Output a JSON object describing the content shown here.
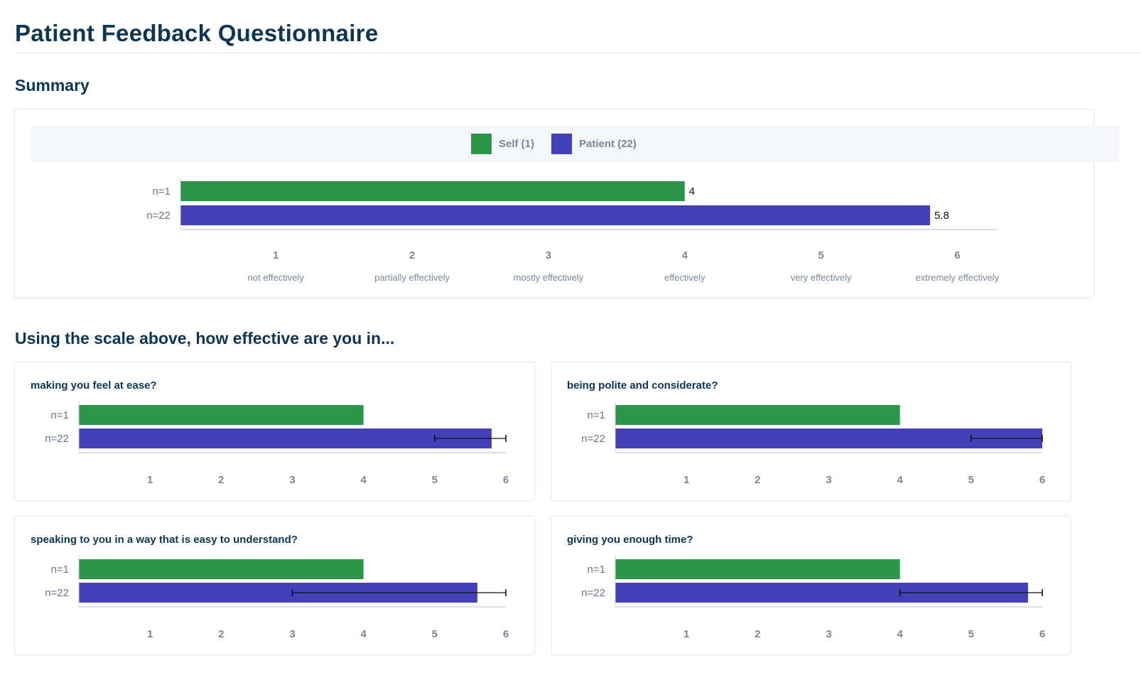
{
  "page": {
    "title": "Patient Feedback Questionnaire"
  },
  "summary": {
    "heading": "Summary",
    "legend": [
      {
        "label": "Self (1)",
        "color": "#2a9748"
      },
      {
        "label": "Patient (22)",
        "color": "#4340b8"
      }
    ]
  },
  "questions_heading": "Using the scale above, how effective are you in...",
  "colors": {
    "self": "#2a9748",
    "patient": "#4340b8",
    "axis": "#cfd4dc",
    "tick_text": "#7b8699",
    "row_label": "#6b7689"
  },
  "chart_data": [
    {
      "type": "bar",
      "id": "summary",
      "title": "",
      "orientation": "horizontal",
      "categories": [
        "n=1",
        "n=22"
      ],
      "series": [
        {
          "name": "Self (1)",
          "value": 4
        },
        {
          "name": "Patient (22)",
          "value": 5.8
        }
      ],
      "data_labels": [
        "4",
        "5.8"
      ],
      "xlim": [
        0.3,
        6.3
      ],
      "ticks": [
        1,
        2,
        3,
        4,
        5,
        6
      ],
      "tick_labels": [
        "1",
        "2",
        "3",
        "4",
        "5",
        "6"
      ],
      "tick_sublabels": [
        "not effectively",
        "partially effectively",
        "mostly effectively",
        "effectively",
        "very effectively",
        "extremely effectively"
      ],
      "grid": false
    },
    {
      "type": "bar",
      "id": "q1",
      "title": "making you feel at ease?",
      "orientation": "horizontal",
      "categories": [
        "n=1",
        "n=22"
      ],
      "series": [
        {
          "name": "Self (1)",
          "value": 4
        },
        {
          "name": "Patient (22)",
          "value": 5.8,
          "error": [
            5,
            6
          ]
        }
      ],
      "xlim": [
        0,
        6
      ],
      "ticks": [
        1,
        2,
        3,
        4,
        5,
        6
      ],
      "tick_labels": [
        "1",
        "2",
        "3",
        "4",
        "5",
        "6"
      ],
      "grid": false
    },
    {
      "type": "bar",
      "id": "q2",
      "title": "being polite and considerate?",
      "orientation": "horizontal",
      "categories": [
        "n=1",
        "n=22"
      ],
      "series": [
        {
          "name": "Self (1)",
          "value": 4
        },
        {
          "name": "Patient (22)",
          "value": 6,
          "error": [
            5,
            6
          ]
        }
      ],
      "xlim": [
        0,
        6
      ],
      "ticks": [
        1,
        2,
        3,
        4,
        5,
        6
      ],
      "tick_labels": [
        "1",
        "2",
        "3",
        "4",
        "5",
        "6"
      ],
      "grid": false
    },
    {
      "type": "bar",
      "id": "q3",
      "title": "speaking to you in a way that is easy to understand?",
      "orientation": "horizontal",
      "categories": [
        "n=1",
        "n=22"
      ],
      "series": [
        {
          "name": "Self (1)",
          "value": 4
        },
        {
          "name": "Patient (22)",
          "value": 5.6,
          "error": [
            3,
            6
          ]
        }
      ],
      "xlim": [
        0,
        6
      ],
      "ticks": [
        1,
        2,
        3,
        4,
        5,
        6
      ],
      "tick_labels": [
        "1",
        "2",
        "3",
        "4",
        "5",
        "6"
      ],
      "grid": false
    },
    {
      "type": "bar",
      "id": "q4",
      "title": "giving you enough time?",
      "orientation": "horizontal",
      "categories": [
        "n=1",
        "n=22"
      ],
      "series": [
        {
          "name": "Self (1)",
          "value": 4
        },
        {
          "name": "Patient (22)",
          "value": 5.8,
          "error": [
            4,
            6
          ]
        }
      ],
      "xlim": [
        0,
        6
      ],
      "ticks": [
        1,
        2,
        3,
        4,
        5,
        6
      ],
      "tick_labels": [
        "1",
        "2",
        "3",
        "4",
        "5",
        "6"
      ],
      "grid": false
    }
  ]
}
